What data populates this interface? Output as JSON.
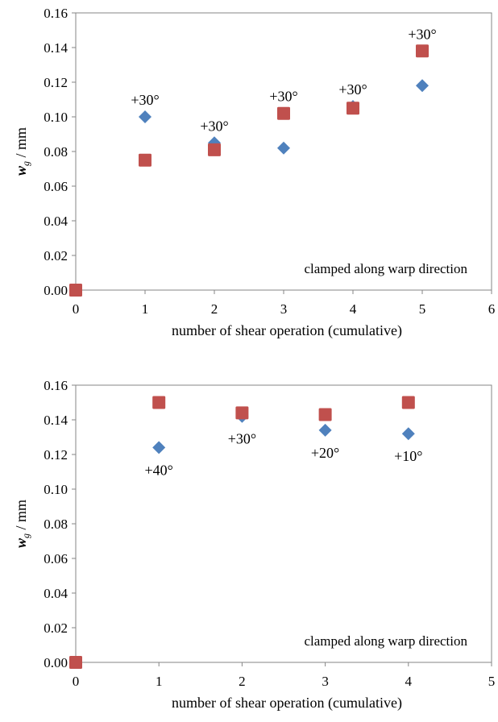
{
  "chart_data": [
    {
      "type": "scatter",
      "xlabel": "number of shear operation (cumulative)",
      "ylabel": "w_g / mm",
      "ylabel_main": "w",
      "ylabel_sub": "g",
      "ylabel_unit": " / mm",
      "xlim": [
        0,
        6
      ],
      "ylim": [
        0,
        0.16
      ],
      "xticks": [
        "0",
        "1",
        "2",
        "3",
        "4",
        "5",
        "6"
      ],
      "yticks": [
        "0.00",
        "0.02",
        "0.04",
        "0.06",
        "0.08",
        "0.10",
        "0.12",
        "0.14",
        "0.16"
      ],
      "grid": false,
      "annotation": "clamped along warp direction",
      "series": [
        {
          "marker": "diamond",
          "color": "#4F81BD",
          "points": [
            {
              "x": 1,
              "y": 0.1
            },
            {
              "x": 2,
              "y": 0.085
            },
            {
              "x": 3,
              "y": 0.082
            },
            {
              "x": 4,
              "y": 0.106
            },
            {
              "x": 5,
              "y": 0.118
            }
          ]
        },
        {
          "marker": "square",
          "color": "#C0504D",
          "points": [
            {
              "x": 0,
              "y": 0.0
            },
            {
              "x": 1,
              "y": 0.075
            },
            {
              "x": 2,
              "y": 0.081
            },
            {
              "x": 3,
              "y": 0.102
            },
            {
              "x": 4,
              "y": 0.105
            },
            {
              "x": 5,
              "y": 0.138
            }
          ]
        }
      ],
      "point_labels": [
        {
          "text": "+30°",
          "x": 1,
          "y": 0.1,
          "anchor": "above"
        },
        {
          "text": "+30°",
          "x": 2,
          "y": 0.085,
          "anchor": "above"
        },
        {
          "text": "+30°",
          "x": 3,
          "y": 0.102,
          "anchor": "above"
        },
        {
          "text": "+30°",
          "x": 4,
          "y": 0.106,
          "anchor": "above"
        },
        {
          "text": "+30°",
          "x": 5,
          "y": 0.138,
          "anchor": "above"
        }
      ]
    },
    {
      "type": "scatter",
      "xlabel": "number of shear operation (cumulative)",
      "ylabel": "w_g / mm",
      "ylabel_main": "w",
      "ylabel_sub": "g",
      "ylabel_unit": " / mm",
      "xlim": [
        0,
        5
      ],
      "ylim": [
        0,
        0.16
      ],
      "xticks": [
        "0",
        "1",
        "2",
        "3",
        "4",
        "5"
      ],
      "yticks": [
        "0.00",
        "0.02",
        "0.04",
        "0.06",
        "0.08",
        "0.10",
        "0.12",
        "0.14",
        "0.16"
      ],
      "grid": false,
      "annotation": "clamped along warp direction",
      "series": [
        {
          "marker": "diamond",
          "color": "#4F81BD",
          "points": [
            {
              "x": 1,
              "y": 0.124
            },
            {
              "x": 2,
              "y": 0.142
            },
            {
              "x": 3,
              "y": 0.134
            },
            {
              "x": 4,
              "y": 0.132
            }
          ]
        },
        {
          "marker": "square",
          "color": "#C0504D",
          "points": [
            {
              "x": 0,
              "y": 0.0
            },
            {
              "x": 1,
              "y": 0.15
            },
            {
              "x": 2,
              "y": 0.144
            },
            {
              "x": 3,
              "y": 0.143
            },
            {
              "x": 4,
              "y": 0.15
            }
          ]
        }
      ],
      "point_labels": [
        {
          "text": "+40°",
          "x": 1,
          "y": 0.124,
          "anchor": "below"
        },
        {
          "text": "+30°",
          "x": 2,
          "y": 0.142,
          "anchor": "below"
        },
        {
          "text": "+20°",
          "x": 3,
          "y": 0.134,
          "anchor": "below"
        },
        {
          "text": "+10°",
          "x": 4,
          "y": 0.132,
          "anchor": "below"
        }
      ]
    }
  ]
}
